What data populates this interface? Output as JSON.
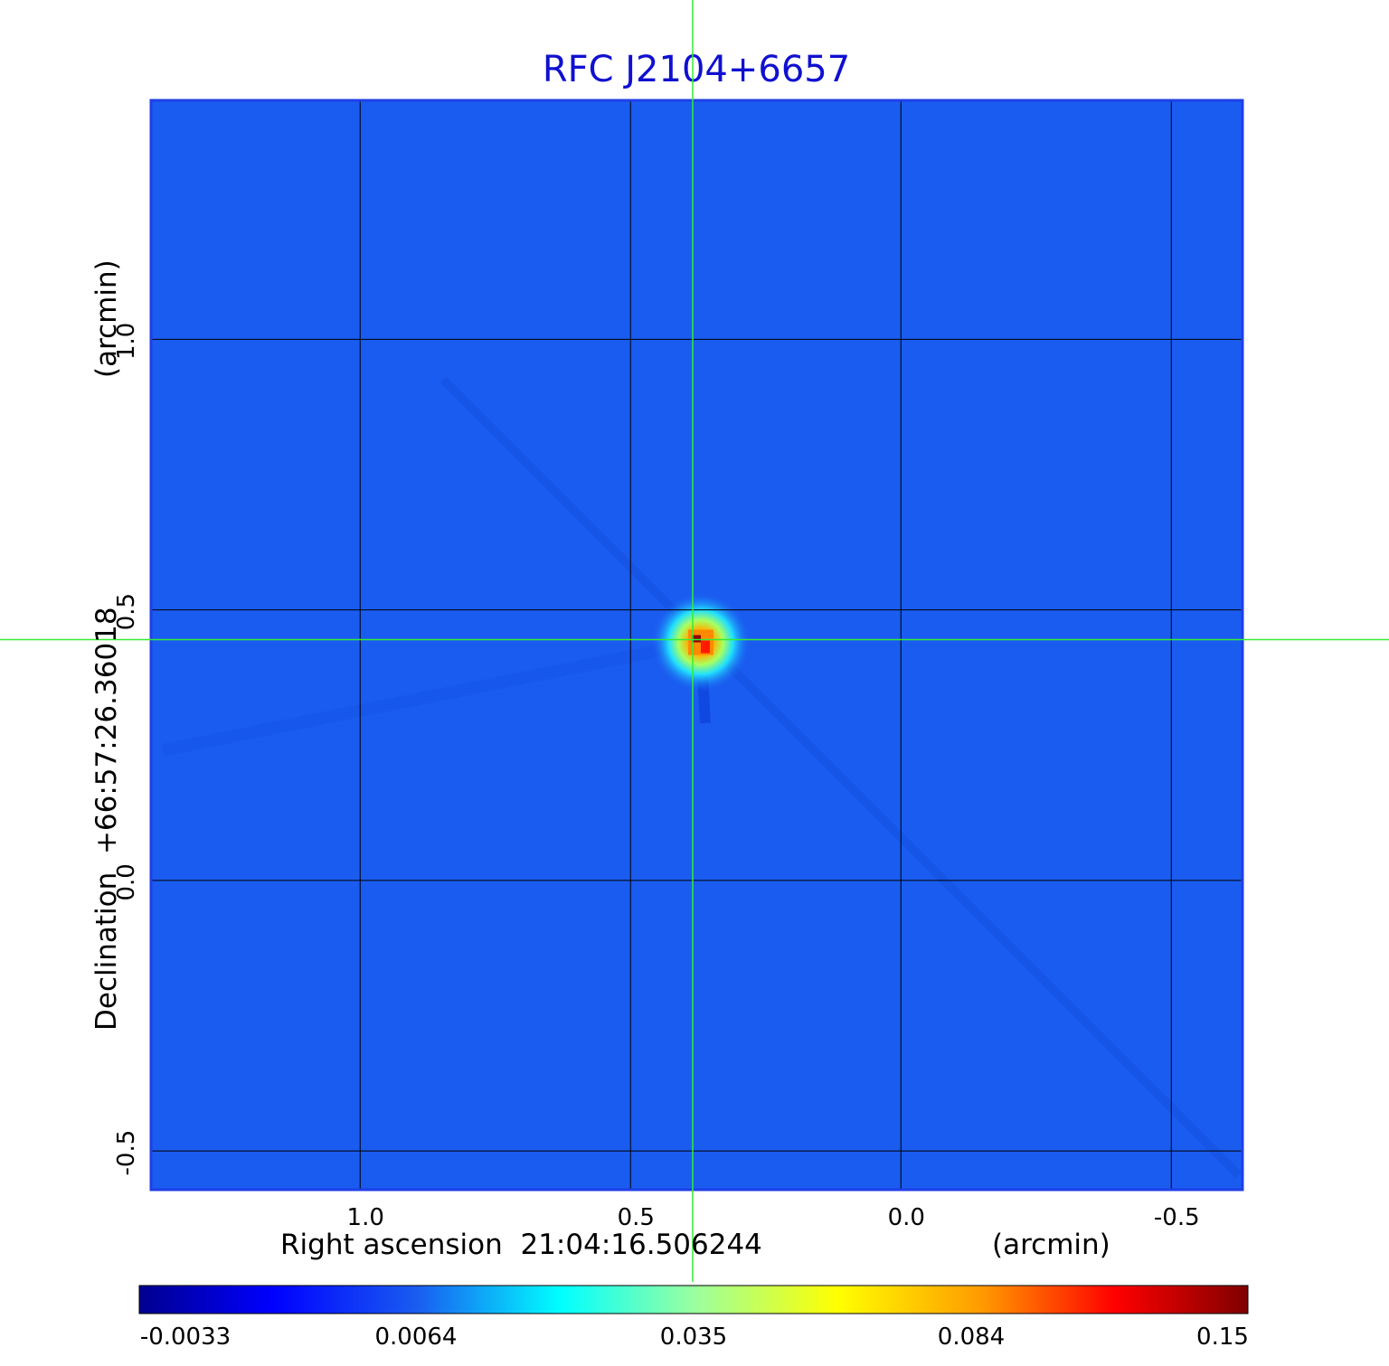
{
  "chart_data": {
    "type": "heatmap",
    "title": "RFC J2104+6657",
    "xlabel": "Right ascension  21:04:16.506244",
    "xunit": "(arcmin)",
    "ylabel": "Declination  +66:57:26.36018",
    "yunit": "(arcmin)",
    "x_ticks": [
      1.0,
      0.5,
      0.0,
      -0.5
    ],
    "x_tick_labels": [
      "1.0",
      "0.5",
      "0.0",
      "-0.5"
    ],
    "y_ticks": [
      1.0,
      0.5,
      0.0,
      -0.5
    ],
    "y_tick_labels": [
      "1.0",
      "0.5",
      "0.0",
      "-0.5"
    ],
    "xlim": [
      1.385,
      -0.63
    ],
    "ylim": [
      -0.57,
      1.44
    ],
    "grid": true,
    "crosshair": {
      "x": 0.385,
      "y": 0.445
    },
    "peak": {
      "x": 0.37,
      "y": 0.44,
      "value": 0.15
    },
    "colorbar": {
      "ticks": [
        "-0.0033",
        "0.0064",
        "0.035",
        "0.084",
        "0.15"
      ],
      "colors": [
        "#00008f",
        "#0000ff",
        "#00ffff",
        "#ffff00",
        "#ff0000",
        "#800000"
      ]
    },
    "colors": {
      "background": "#1a5cf0",
      "title": "#1010d0",
      "crosshair": "#33ee33",
      "frame": "#1f3fe8"
    }
  }
}
